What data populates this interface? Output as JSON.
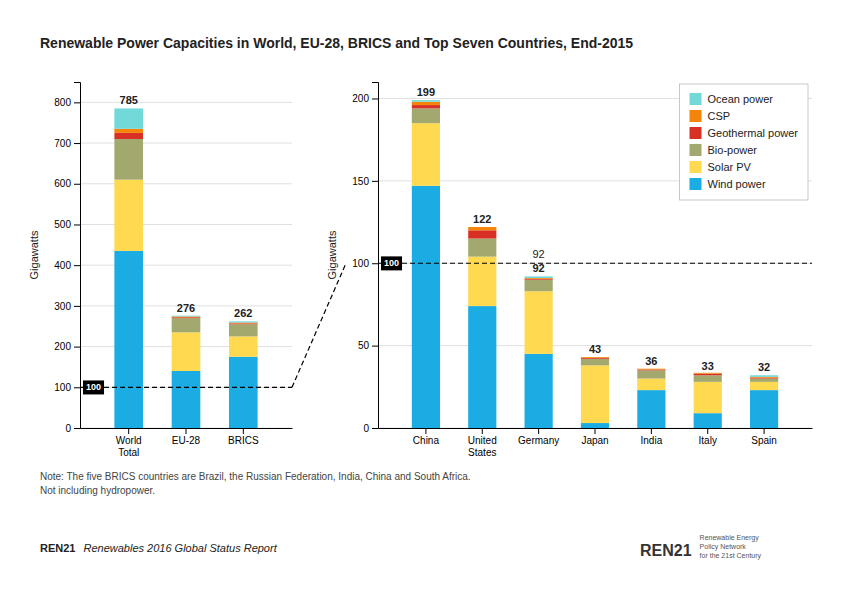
{
  "chart_data": [
    {
      "type": "bar",
      "stacked": true,
      "grid": true,
      "title": "Renewable Power Capacities in World, EU-28, BRICS and Top Seven Countries, End-2015",
      "ylabel": "Gigawatts",
      "categories": [
        "World\nTotal",
        "EU-28",
        "BRICS"
      ],
      "series": [
        {
          "name": "Wind power",
          "color": "#1aace3",
          "values": [
            435,
            140,
            175
          ]
        },
        {
          "name": "Solar PV",
          "color": "#ffd94f",
          "values": [
            175,
            95,
            50
          ]
        },
        {
          "name": "Bio-power",
          "color": "#a3a96e",
          "values": [
            100,
            35,
            30
          ]
        },
        {
          "name": "Geothermal power",
          "color": "#d93025",
          "values": [
            15,
            2,
            2
          ]
        },
        {
          "name": "CSP",
          "color": "#f4840a",
          "values": [
            10,
            2,
            2
          ]
        },
        {
          "name": "Ocean power",
          "color": "#72d8d8",
          "values": [
            50,
            2,
            3
          ]
        }
      ],
      "totals": [
        785,
        276,
        262
      ],
      "reference_lines": [
        100
      ],
      "ylim": [
        0,
        850
      ],
      "yticks": [
        0,
        100,
        200,
        300,
        400,
        500,
        600,
        700,
        800
      ],
      "annotations": [
        "Note: The five BRICS countries are Brazil, the Russian Federation, India, China and South Africa.",
        "Not including hydropower.",
        "REN21",
        "Renewables 2016 Global Status Report",
        "REN21",
        "Renewable Energy",
        "Policy Network",
        "for the 21st Century"
      ]
    },
    {
      "type": "bar",
      "stacked": true,
      "grid": true,
      "legend": "upper right",
      "ylabel": "Gigawatts",
      "categories": [
        "China",
        "United\nStates",
        "Germany",
        "Japan",
        "India",
        "Italy",
        "Spain"
      ],
      "series": [
        {
          "name": "Wind power",
          "color": "#1aace3",
          "values": [
            147,
            74,
            45,
            3,
            23,
            9,
            23
          ]
        },
        {
          "name": "Solar PV",
          "color": "#ffd94f",
          "values": [
            38,
            30,
            38,
            35,
            7,
            19,
            5
          ]
        },
        {
          "name": "Bio-power",
          "color": "#a3a96e",
          "values": [
            9,
            11,
            7,
            4,
            5,
            4,
            2
          ]
        },
        {
          "name": "Geothermal power",
          "color": "#d93025",
          "values": [
            2,
            5,
            0.5,
            0.5,
            0.5,
            1,
            0.5
          ]
        },
        {
          "name": "CSP",
          "color": "#f4840a",
          "values": [
            2,
            2,
            0.5,
            0.5,
            0.5,
            0.5,
            0.5
          ]
        },
        {
          "name": "Ocean power",
          "color": "#72d8d8",
          "values": [
            1,
            0,
            1,
            0,
            0,
            0,
            1
          ]
        }
      ],
      "totals": [
        199,
        122,
        92,
        43,
        36,
        33,
        32
      ],
      "reference_lines": [
        100
      ],
      "annotations": [
        {
          "text": "92",
          "x": "Germany",
          "y": 102
        }
      ],
      "ylim": [
        0,
        210
      ],
      "yticks": [
        0,
        50,
        100,
        150,
        200
      ]
    }
  ]
}
